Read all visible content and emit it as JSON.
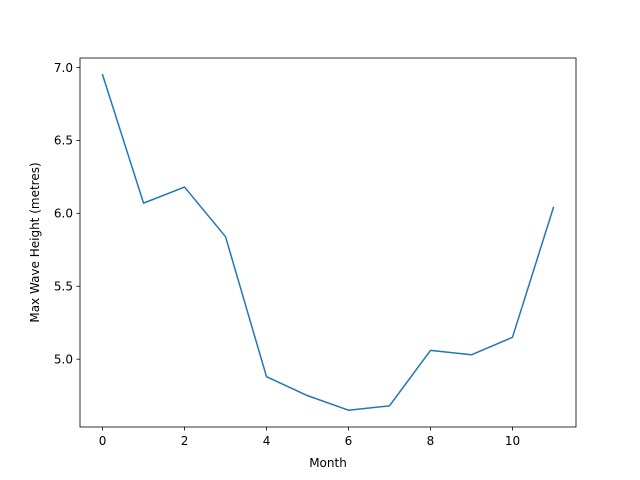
{
  "chart_data": {
    "type": "line",
    "title": "",
    "xlabel": "Month",
    "ylabel": "Max Wave Height (metres)",
    "x": [
      0,
      1,
      2,
      3,
      4,
      5,
      6,
      7,
      8,
      9,
      10,
      11
    ],
    "series": [
      {
        "values": [
          6.95,
          6.07,
          6.18,
          5.84,
          4.88,
          4.75,
          4.65,
          4.68,
          5.06,
          5.03,
          5.15,
          6.04
        ],
        "color": "#1f77b4"
      }
    ],
    "xlim": [
      -0.55,
      11.55
    ],
    "ylim": [
      4.535,
      7.065
    ],
    "xticks": [
      0,
      2,
      4,
      6,
      8,
      10
    ],
    "yticks": [
      5.0,
      5.5,
      6.0,
      6.5,
      7.0
    ],
    "xtick_labels": [
      "0",
      "2",
      "4",
      "6",
      "8",
      "10"
    ],
    "ytick_labels": [
      "5.0",
      "5.5",
      "6.0",
      "6.5",
      "7.0"
    ],
    "grid": false,
    "legend": "none"
  }
}
